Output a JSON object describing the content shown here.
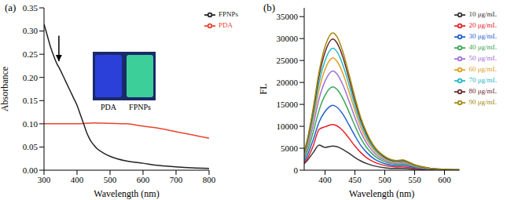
{
  "chart_data": [
    {
      "type": "line",
      "panel": "(a)",
      "x_label": "Wavelength (nm)",
      "y_label": "Absorbance",
      "xlim": [
        300,
        800
      ],
      "xticks": [
        300,
        400,
        500,
        600,
        700,
        800
      ],
      "ylim": [
        0,
        0.35
      ],
      "yticks": [
        {
          "value": 0,
          "label": "0.00"
        },
        {
          "value": 0.05,
          "label": "0.05"
        },
        {
          "value": 0.1,
          "label": "0.10"
        },
        {
          "value": 0.15,
          "label": "0.15"
        },
        {
          "value": 0.2,
          "label": "0.20"
        },
        {
          "value": 0.25,
          "label": "0.25"
        },
        {
          "value": 0.3,
          "label": "0.30"
        },
        {
          "value": 0.35,
          "label": "0.35"
        }
      ],
      "legend": "upper right",
      "inset": {
        "labels": [
          "PDA",
          "FPNPs"
        ]
      },
      "arrow": {
        "x": 345,
        "y": [
          0.29,
          0.235
        ]
      },
      "series": [
        {
          "name": "PDA",
          "color": "#e8432f",
          "x": [
            300,
            400,
            450,
            500,
            550,
            600,
            650,
            700,
            750,
            800
          ],
          "values": [
            0.1,
            0.1,
            0.102,
            0.101,
            0.1,
            0.095,
            0.09,
            0.083,
            0.076,
            0.069
          ]
        },
        {
          "name": "FPNPs",
          "color": "#222222",
          "x": [
            300,
            310,
            320,
            330,
            340,
            345,
            350,
            360,
            370,
            380,
            390,
            400,
            410,
            420,
            430,
            440,
            450,
            460,
            480,
            500,
            520,
            550,
            600,
            650,
            700,
            750,
            800
          ],
          "values": [
            0.315,
            0.29,
            0.265,
            0.245,
            0.228,
            0.222,
            0.215,
            0.2,
            0.185,
            0.17,
            0.155,
            0.14,
            0.12,
            0.1,
            0.08,
            0.065,
            0.055,
            0.047,
            0.037,
            0.03,
            0.025,
            0.02,
            0.015,
            0.01,
            0.007,
            0.005,
            0.004
          ]
        }
      ]
    },
    {
      "type": "line",
      "panel": "(b)",
      "x_label": "Wavelength (nm)",
      "y_label": "FL",
      "xlim": [
        365,
        625
      ],
      "xticks": [
        400,
        450,
        500,
        550,
        600
      ],
      "ylim": [
        0,
        37000
      ],
      "yticks": [
        0,
        5000,
        10000,
        15000,
        20000,
        25000,
        30000,
        35000
      ],
      "legend": "upper right",
      "x": [
        365,
        370,
        380,
        390,
        400,
        413,
        420,
        430,
        440,
        450,
        460,
        470,
        480,
        500,
        520,
        530,
        540,
        550,
        575,
        600,
        625
      ],
      "series": [
        {
          "name": "10 μg/mL",
          "color": "#333333",
          "values": [
            1500,
            2200,
            4000,
            5700,
            5200,
            5500,
            5350,
            4700,
            3850,
            2900,
            2100,
            1500,
            1050,
            550,
            390,
            410,
            330,
            220,
            80,
            35,
            15
          ]
        },
        {
          "name": "20 μg/mL",
          "color": "#e8202a",
          "values": [
            1700,
            2600,
            5500,
            9300,
            9900,
            10400,
            10100,
            9000,
            7300,
            5500,
            4000,
            2800,
            2000,
            1050,
            730,
            780,
            620,
            420,
            160,
            60,
            30
          ]
        },
        {
          "name": "30 μg/mL",
          "color": "#1f5fd0",
          "values": [
            2100,
            3300,
            6900,
            11000,
            13400,
            14800,
            14350,
            12700,
            10350,
            7850,
            5600,
            4000,
            2800,
            1480,
            1040,
            1110,
            890,
            590,
            220,
            90,
            45
          ]
        },
        {
          "name": "40 μg/mL",
          "color": "#3aa655",
          "values": [
            2600,
            4200,
            8600,
            13700,
            17100,
            19000,
            18400,
            16300,
            13300,
            10100,
            7200,
            5100,
            3600,
            1900,
            1330,
            1430,
            1140,
            760,
            290,
            110,
            60
          ]
        },
        {
          "name": "50 μg/mL",
          "color": "#a070d8",
          "values": [
            3100,
            5000,
            10200,
            16300,
            20300,
            22600,
            21900,
            19400,
            15800,
            12000,
            8600,
            6100,
            4300,
            2260,
            1580,
            1700,
            1360,
            900,
            340,
            140,
            70
          ]
        },
        {
          "name": "60 μg/mL",
          "color": "#e0a020",
          "values": [
            3500,
            5600,
            11500,
            18400,
            23000,
            25600,
            24800,
            22000,
            17900,
            13600,
            9700,
            6900,
            4900,
            2560,
            1790,
            1920,
            1540,
            1020,
            380,
            150,
            80
          ]
        },
        {
          "name": "70 μg/mL",
          "color": "#22b8c8",
          "values": [
            3800,
            6100,
            12500,
            20000,
            25000,
            27800,
            27000,
            23900,
            19500,
            14700,
            10600,
            7500,
            5300,
            2780,
            1950,
            2090,
            1670,
            1110,
            420,
            170,
            80
          ]
        },
        {
          "name": "80 μg/mL",
          "color": "#6b2a2a",
          "values": [
            4100,
            6600,
            13500,
            21500,
            26900,
            29900,
            29000,
            25700,
            20900,
            15800,
            11400,
            8100,
            5700,
            2990,
            2090,
            2240,
            1790,
            1200,
            450,
            180,
            90
          ]
        },
        {
          "name": "90 μg/mL",
          "color": "#a08a10",
          "values": [
            4300,
            6900,
            14100,
            22500,
            28200,
            31300,
            30400,
            26900,
            21900,
            16600,
            11900,
            8500,
            5900,
            3130,
            2190,
            2350,
            1880,
            1250,
            470,
            190,
            90
          ]
        }
      ]
    }
  ]
}
